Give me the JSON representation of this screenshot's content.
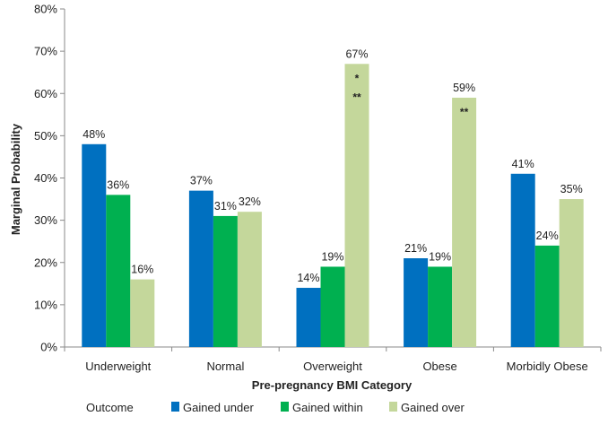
{
  "chart_data": {
    "type": "bar",
    "categories": [
      "Underweight",
      "Normal",
      "Overweight",
      "Obese",
      "Morbidly Obese"
    ],
    "series": [
      {
        "name": "Gained under",
        "color": "#0070C0",
        "values": [
          48,
          37,
          14,
          21,
          41
        ],
        "labels": [
          "48%",
          "37%",
          "14%",
          "21%",
          "41%"
        ]
      },
      {
        "name": "Gained within",
        "color": "#00B050",
        "values": [
          36,
          31,
          19,
          19,
          24
        ],
        "labels": [
          "36%",
          "31%",
          "19%",
          "19%",
          "24%"
        ]
      },
      {
        "name": "Gained over",
        "color": "#C4D79B",
        "values": [
          16,
          32,
          67,
          59,
          35
        ],
        "labels": [
          "16%",
          "32%",
          "67%",
          "59%",
          "35%"
        ]
      }
    ],
    "yticks": [
      0,
      10,
      20,
      30,
      40,
      50,
      60,
      70,
      80
    ],
    "ytick_labels": [
      "0%",
      "10%",
      "20%",
      "30%",
      "40%",
      "50%",
      "60%",
      "70%",
      "80%"
    ],
    "ylim": [
      0,
      80
    ],
    "xlabel": "Pre-pregnancy BMI Category",
    "ylabel": "Marginal Probability",
    "legend_title": "Outcome",
    "legend_position": "bottom",
    "grid": false,
    "annotations": [
      {
        "category": "Overweight",
        "series": "Gained over",
        "marks": [
          "*",
          "**"
        ]
      },
      {
        "category": "Obese",
        "series": "Gained over",
        "marks": [
          "**"
        ]
      }
    ]
  }
}
